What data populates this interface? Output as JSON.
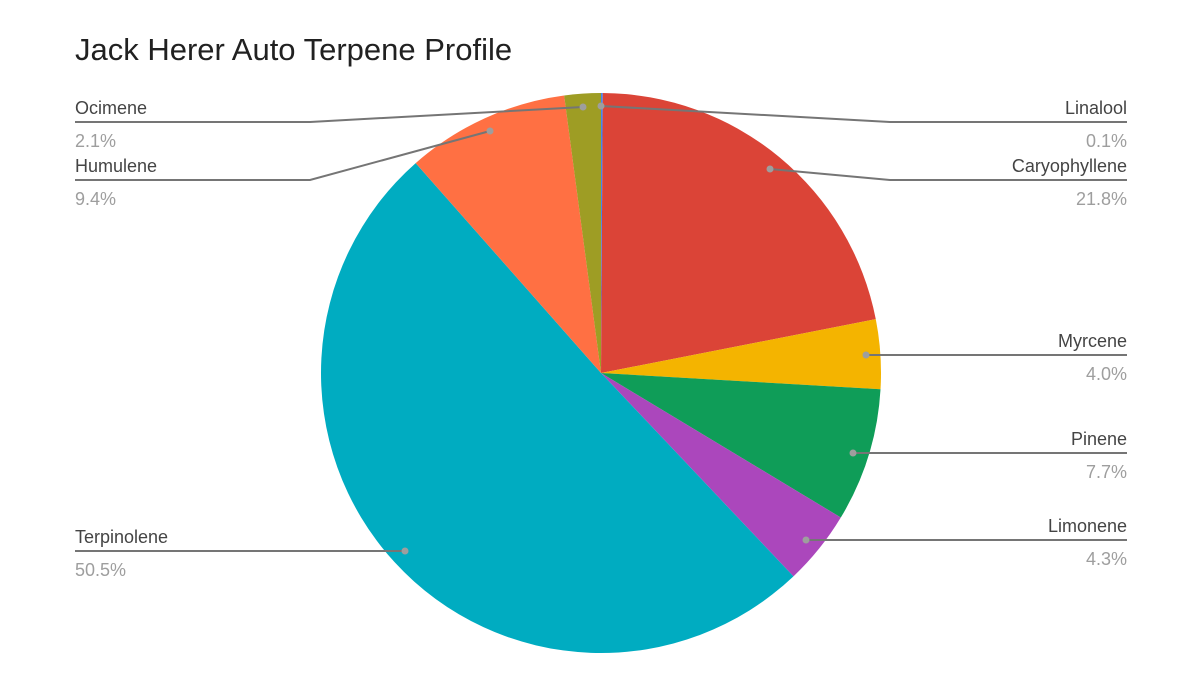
{
  "chart_data": {
    "type": "pie",
    "title": "Jack Herer Auto Terpene Profile",
    "start_angle": "12 o'clock, clockwise",
    "legend": "labeled slices with leader lines",
    "slices": [
      {
        "label": "Linalool",
        "value": 0.1,
        "display": "0.1%",
        "color": "#4285f4"
      },
      {
        "label": "Caryophyllene",
        "value": 21.8,
        "display": "21.8%",
        "color": "#db4437"
      },
      {
        "label": "Myrcene",
        "value": 4.0,
        "display": "4.0%",
        "color": "#f4b400"
      },
      {
        "label": "Pinene",
        "value": 7.7,
        "display": "7.7%",
        "color": "#0f9d58"
      },
      {
        "label": "Limonene",
        "value": 4.3,
        "display": "4.3%",
        "color": "#ab47bc"
      },
      {
        "label": "Terpinolene",
        "value": 50.5,
        "display": "50.5%",
        "color": "#00acc1"
      },
      {
        "label": "Humulene",
        "value": 9.4,
        "display": "9.4%",
        "color": "#ff7043"
      },
      {
        "label": "Ocimene",
        "value": 2.1,
        "display": "2.1%",
        "color": "#9e9d24"
      }
    ]
  }
}
